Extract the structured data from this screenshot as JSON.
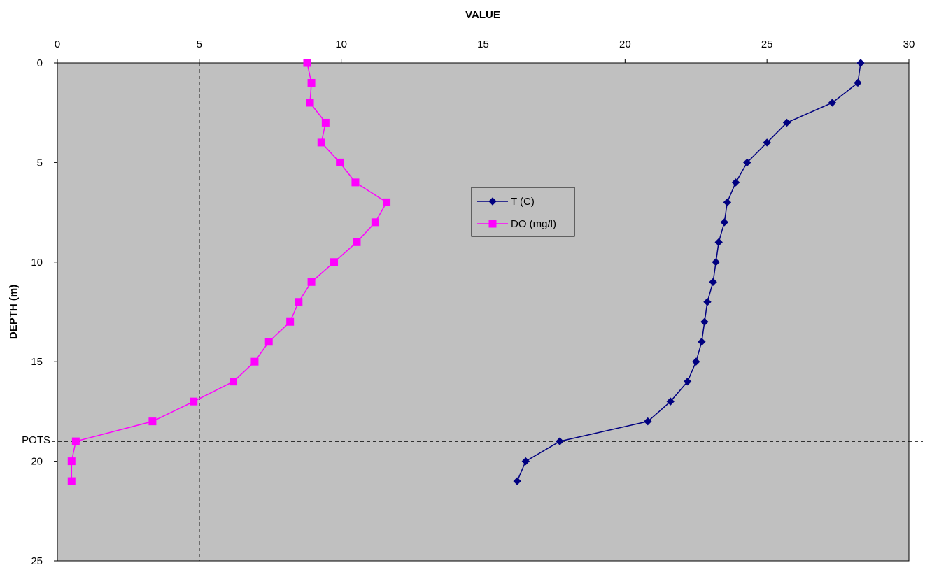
{
  "chart_data": {
    "type": "line",
    "title": "",
    "xlabel": "VALUE",
    "ylabel": "DEPTH (m)",
    "xlim": [
      0,
      30
    ],
    "ylim": [
      0,
      25
    ],
    "y_inverted": true,
    "x_axis_position": "top",
    "x_ticks": [
      "0",
      "5",
      "10",
      "15",
      "20",
      "25",
      "30"
    ],
    "y_ticks": [
      "0",
      "5",
      "10",
      "15",
      "20",
      "25"
    ],
    "grid": false,
    "plot_background": "#c0c0c0",
    "legend_position": "center",
    "series": [
      {
        "name": "T (C)",
        "color": "#000080",
        "marker": "diamond",
        "x": [
          28.3,
          28.2,
          27.3,
          25.7,
          25.0,
          24.3,
          23.9,
          23.6,
          23.5,
          23.3,
          23.2,
          23.1,
          22.9,
          22.8,
          22.7,
          22.5,
          22.2,
          21.6,
          20.8,
          17.7,
          16.5,
          16.2
        ],
        "y": [
          0,
          1,
          2,
          3,
          4,
          5,
          6,
          7,
          8,
          9,
          10,
          11,
          12,
          13,
          14,
          15,
          16,
          17,
          18,
          19,
          20,
          21
        ]
      },
      {
        "name": "DO (mg/l)",
        "color": "#ff00ff",
        "marker": "square",
        "x": [
          8.8,
          8.95,
          8.9,
          9.45,
          9.3,
          9.95,
          10.5,
          11.6,
          11.2,
          10.55,
          9.75,
          8.95,
          8.5,
          8.2,
          7.45,
          6.95,
          6.2,
          4.8,
          3.35,
          0.65,
          0.5,
          0.5
        ],
        "y": [
          0,
          1,
          2,
          3,
          4,
          5,
          6,
          7,
          8,
          9,
          10,
          11,
          12,
          13,
          14,
          15,
          16,
          17,
          18,
          19,
          20,
          21
        ]
      }
    ],
    "reference_lines": [
      {
        "orientation": "vertical",
        "x": 5,
        "style": "dashed"
      },
      {
        "orientation": "horizontal",
        "y": 19,
        "label": "POTS",
        "style": "dashed"
      }
    ]
  }
}
